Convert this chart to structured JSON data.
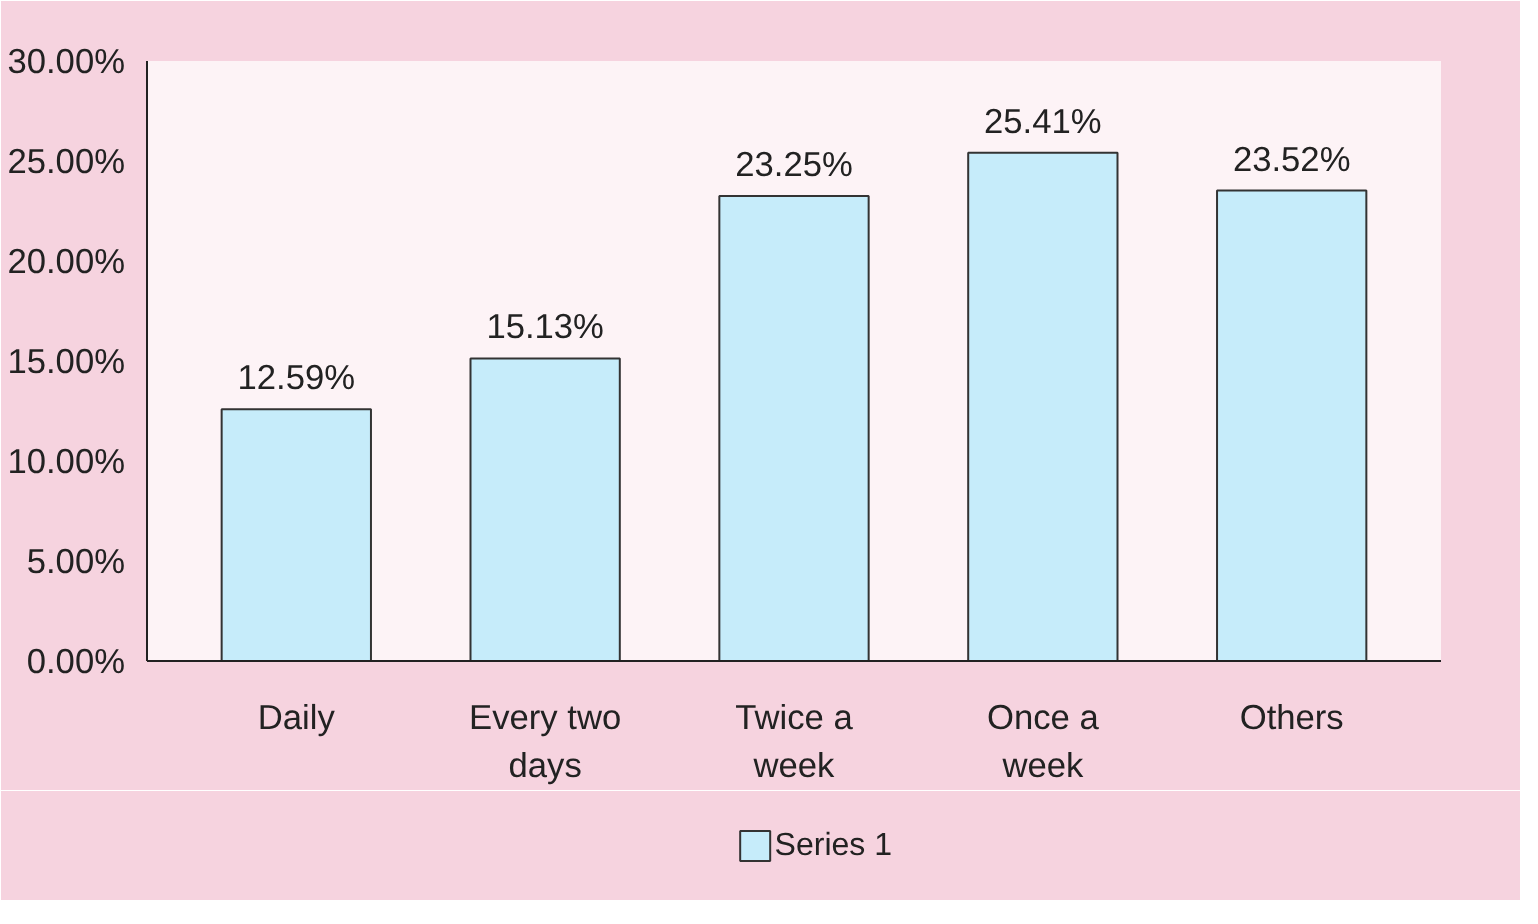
{
  "chart_data": {
    "type": "bar",
    "categories": [
      "Daily",
      "Every two days",
      "Twice a week",
      "Once a week",
      "Others"
    ],
    "series": [
      {
        "name": "Series 1",
        "color": "#c6ecfa",
        "values": [
          12.59,
          15.13,
          23.25,
          25.41,
          23.52
        ],
        "value_labels": [
          "12.59%",
          "15.13%",
          "23.25%",
          "25.41%",
          "23.52%"
        ]
      }
    ],
    "ylim": [
      0,
      30
    ],
    "yticks": [
      {
        "value": 0,
        "label": "0.00%"
      },
      {
        "value": 5,
        "label": "5.00%"
      },
      {
        "value": 10,
        "label": "10.00%"
      },
      {
        "value": 15,
        "label": "15.00%"
      },
      {
        "value": 20,
        "label": "20.00%"
      },
      {
        "value": 25,
        "label": "25.00%"
      },
      {
        "value": 30,
        "label": "30.00%"
      }
    ],
    "grid": false,
    "legend": "bottom"
  }
}
